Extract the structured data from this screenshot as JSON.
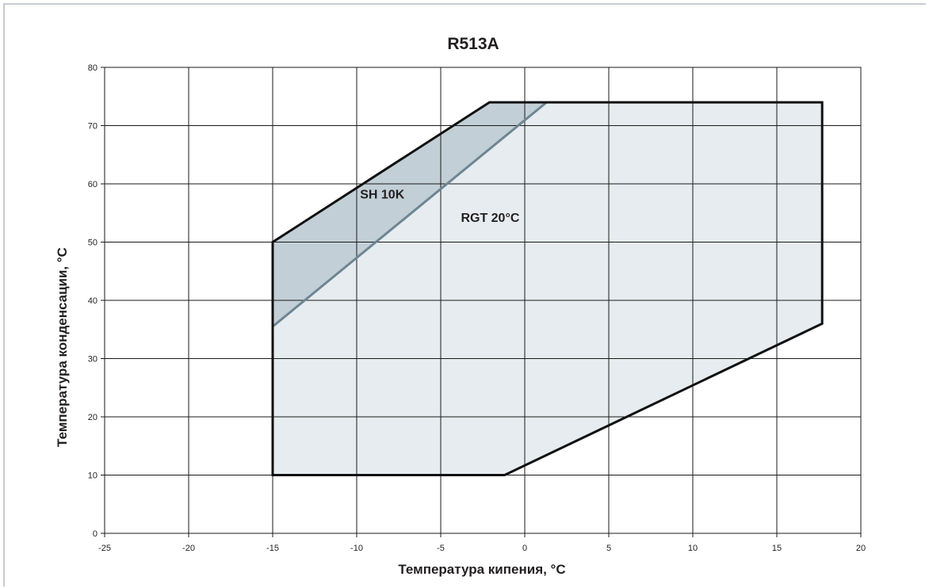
{
  "chart_data": {
    "type": "area",
    "title": "R513A",
    "xlabel": "Температура кипения, °C",
    "ylabel": "Температура конденсации, °C",
    "xlim": [
      -25,
      20
    ],
    "ylim": [
      0,
      80
    ],
    "x_ticks": [
      -25,
      -20,
      -15,
      -10,
      -5,
      0,
      5,
      10,
      15,
      20
    ],
    "y_ticks": [
      0,
      10,
      20,
      30,
      40,
      50,
      60,
      70,
      80
    ],
    "grid": true,
    "series": [
      {
        "name": "RGT 20°C",
        "points": [
          [
            -15,
            10
          ],
          [
            -1.2,
            10
          ],
          [
            17.7,
            36
          ],
          [
            17.7,
            74
          ],
          [
            -2.1,
            74
          ],
          [
            -15,
            50
          ]
        ],
        "fill": "#e6ecef",
        "stroke": "#111111"
      },
      {
        "name": "SH 10K",
        "points": [
          [
            -15,
            50
          ],
          [
            -2.1,
            74
          ],
          [
            1.3,
            74
          ],
          [
            -15,
            35.5
          ]
        ],
        "fill": "#c2cfd6",
        "stroke": "#6e8593"
      }
    ],
    "annotations": [
      {
        "text": "SH 10K",
        "x": -9.8,
        "y": 57.5
      },
      {
        "text": "RGT 20°C",
        "x": -3.8,
        "y": 53.5
      }
    ]
  }
}
